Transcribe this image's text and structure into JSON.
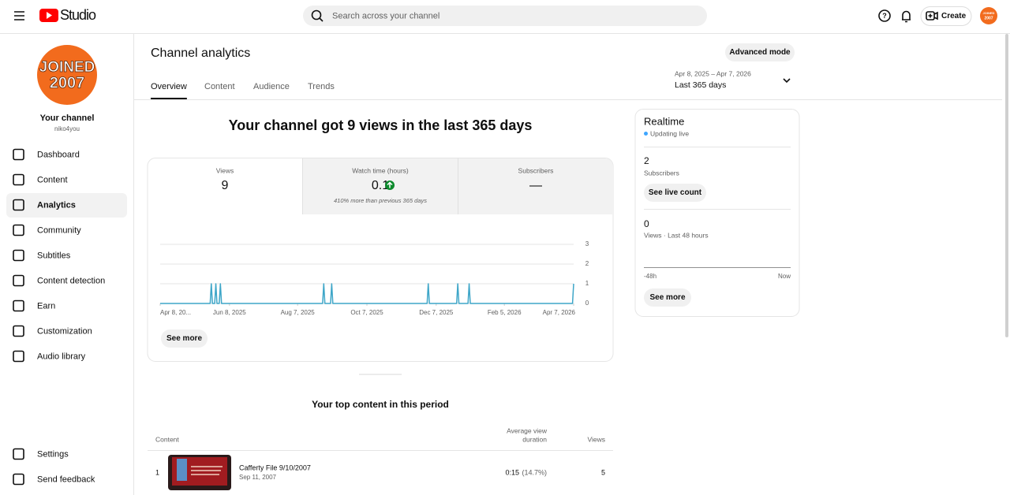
{
  "header": {
    "brand": "Studio",
    "search_placeholder": "Search across your channel",
    "create": "Create"
  },
  "sidebar": {
    "avatar_line1": "JOINED",
    "avatar_line2": "2007",
    "channel_label": "Your channel",
    "handle": "niko4you",
    "nav": [
      "Dashboard",
      "Content",
      "Analytics",
      "Community",
      "Subtitles",
      "Content detection",
      "Earn",
      "Customization",
      "Audio library"
    ],
    "bottom_nav": [
      "Settings",
      "Send feedback"
    ]
  },
  "page": {
    "title": "Channel analytics",
    "advanced_mode": "Advanced mode",
    "tabs": [
      "Overview",
      "Content",
      "Audience",
      "Trends"
    ],
    "date_range": "Apr 8, 2025 – Apr 7, 2026",
    "period": "Last 365 days",
    "headline": "Your channel got 9 views in the last 365 days"
  },
  "metrics": [
    {
      "label": "Views",
      "value": 9
    },
    {
      "label": "Watch time (hours)",
      "value": 0.1,
      "note": "410% more than previous 365 days"
    },
    {
      "label": "Subscribers",
      "value": "—"
    }
  ],
  "chart_data": {
    "type": "line",
    "x": [
      "2025-04-08",
      "2025-05-22",
      "2025-05-23",
      "2025-05-24",
      "2025-05-26",
      "2025-05-27",
      "2025-05-28",
      "2025-05-30",
      "2025-05-31",
      "2025-06-01",
      "2025-08-29",
      "2025-08-30",
      "2025-08-31",
      "2025-09-05",
      "2025-09-06",
      "2025-09-07",
      "2025-11-29",
      "2025-11-30",
      "2025-12-01",
      "2025-12-25",
      "2025-12-26",
      "2025-12-27",
      "2026-01-04",
      "2026-01-05",
      "2026-01-06",
      "2026-04-06",
      "2026-04-07"
    ],
    "values": [
      0,
      0,
      1,
      0,
      0,
      1,
      0,
      0,
      1,
      0,
      0,
      1,
      0,
      0,
      1,
      0,
      0,
      1,
      0,
      0,
      1,
      0,
      0,
      1,
      0,
      0,
      1
    ],
    "color": "#3ea6c8",
    "xlim": [
      "2025-04-08",
      "2026-04-07"
    ],
    "xticks": [
      {
        "value": "2025-04-08",
        "label": "Apr 8, 20..."
      },
      {
        "value": "2025-06-08",
        "label": "Jun 8, 2025"
      },
      {
        "value": "2025-08-07",
        "label": "Aug 7, 2025"
      },
      {
        "value": "2025-10-07",
        "label": "Oct 7, 2025"
      },
      {
        "value": "2025-12-07",
        "label": "Dec 7, 2025"
      },
      {
        "value": "2026-02-05",
        "label": "Feb 5, 2026"
      },
      {
        "value": "2026-04-07",
        "label": "Apr 7, 2026"
      }
    ],
    "ylim": [
      0,
      3
    ],
    "yticks": [
      0,
      1,
      2,
      3
    ],
    "grid": true,
    "see_more": "See more"
  },
  "realtime": {
    "title": "Realtime",
    "status": "Updating live",
    "subscribers": 2,
    "subscribers_label": "Subscribers",
    "live_count": "See live count",
    "views": 0,
    "views_label": "Views · Last 48 hours",
    "axis_start": "-48h",
    "axis_end": "Now",
    "see_more": "See more"
  },
  "top_content": {
    "title": "Your top content in this period",
    "columns": [
      "Content",
      "Average view",
      "duration",
      "Views"
    ],
    "rows": [
      {
        "rank": 1,
        "title": "Cafferty File 9/10/2007",
        "date": "Sep 11, 2007",
        "duration": "0:15",
        "percent": "(14.7%)",
        "views": 5
      }
    ]
  }
}
